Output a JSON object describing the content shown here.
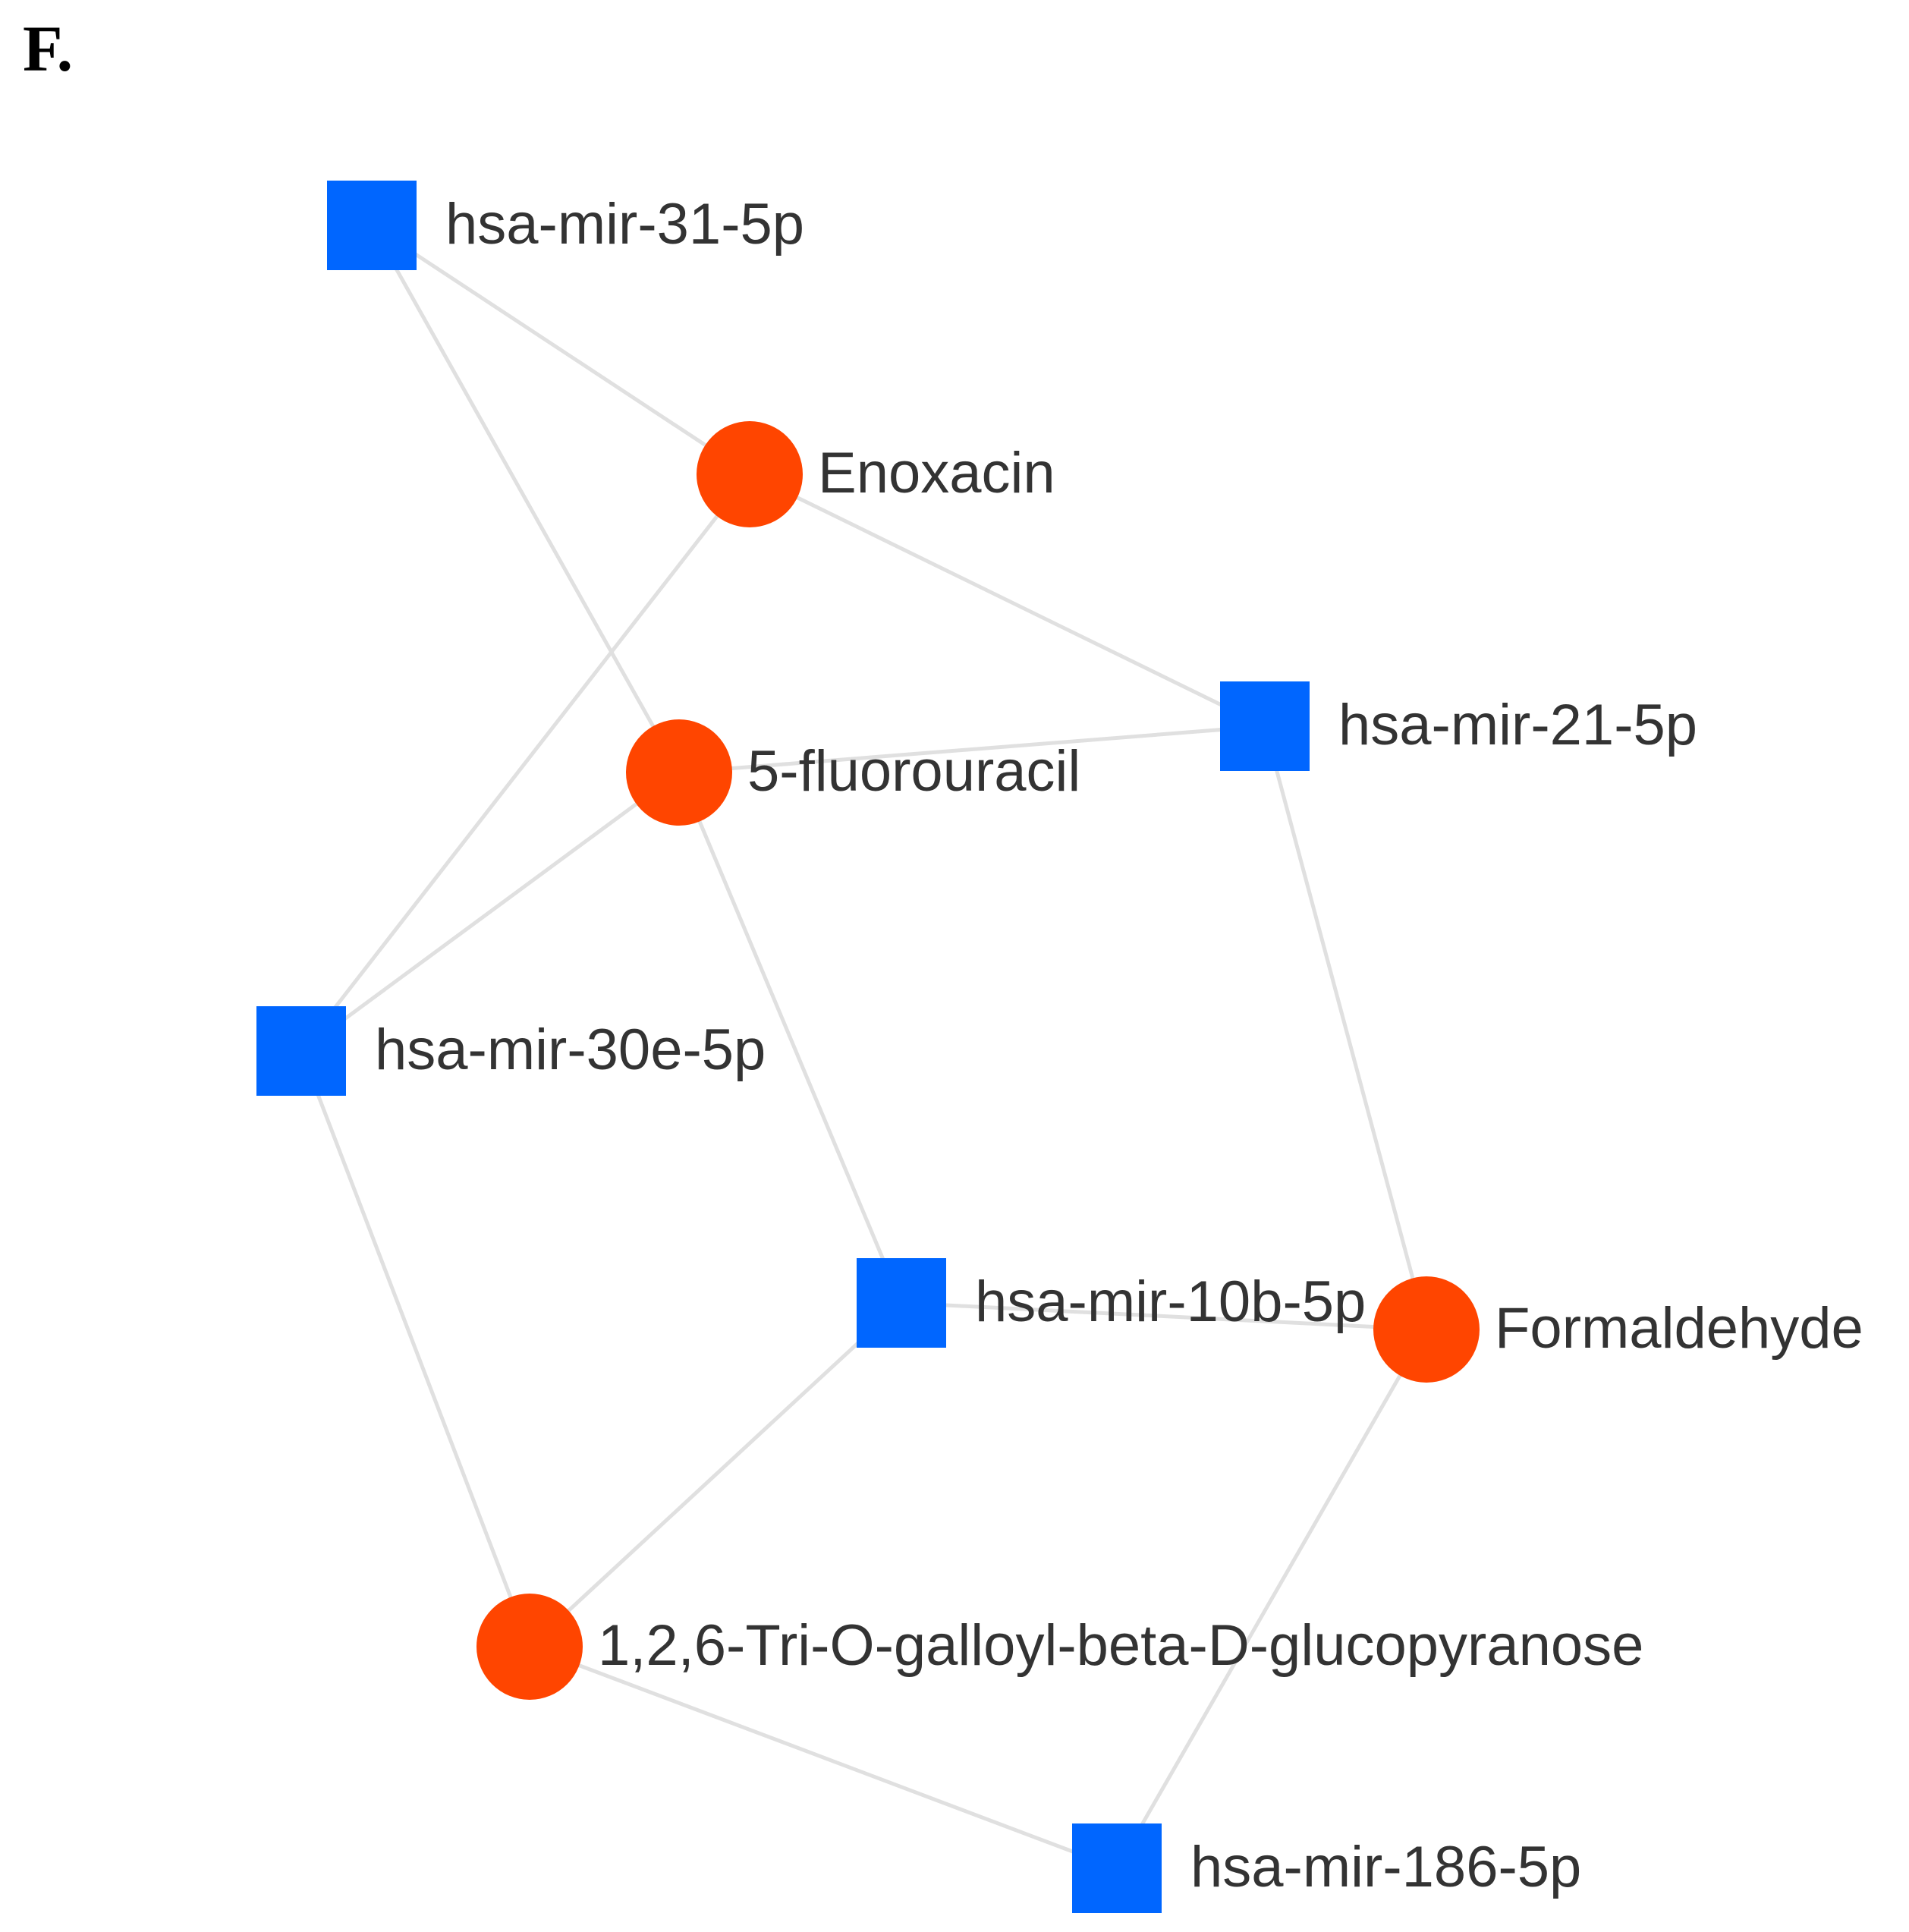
{
  "panel_label": "F.",
  "colors": {
    "mirna": "#0066ff",
    "compound": "#ff4500",
    "edge": "#e0e0e0"
  },
  "legend_semantics": {
    "square": "miRNA",
    "circle": "compound"
  },
  "nodes": [
    {
      "id": "mir31",
      "label": "hsa-mir-31-5p",
      "shape": "square"
    },
    {
      "id": "enox",
      "label": "Enoxacin",
      "shape": "circle"
    },
    {
      "id": "mir21",
      "label": "hsa-mir-21-5p",
      "shape": "square"
    },
    {
      "id": "fu",
      "label": "5-fluorouracil",
      "shape": "circle"
    },
    {
      "id": "mir30e",
      "label": "hsa-mir-30e-5p",
      "shape": "square"
    },
    {
      "id": "mir10b",
      "label": "hsa-mir-10b-5p",
      "shape": "square"
    },
    {
      "id": "form",
      "label": "Formaldehyde",
      "shape": "circle"
    },
    {
      "id": "tog",
      "label": "1,2,6-Tri-O-galloyl-beta-D-glucopyranose",
      "shape": "circle"
    },
    {
      "id": "mir186",
      "label": "hsa-mir-186-5p",
      "shape": "square"
    }
  ],
  "edges": [
    [
      "mir31",
      "enox"
    ],
    [
      "mir31",
      "fu"
    ],
    [
      "enox",
      "mir21"
    ],
    [
      "enox",
      "mir30e"
    ],
    [
      "fu",
      "mir21"
    ],
    [
      "fu",
      "mir30e"
    ],
    [
      "fu",
      "mir10b"
    ],
    [
      "mir21",
      "form"
    ],
    [
      "mir30e",
      "tog"
    ],
    [
      "mir10b",
      "form"
    ],
    [
      "mir10b",
      "tog"
    ],
    [
      "form",
      "mir186"
    ],
    [
      "tog",
      "mir186"
    ]
  ]
}
